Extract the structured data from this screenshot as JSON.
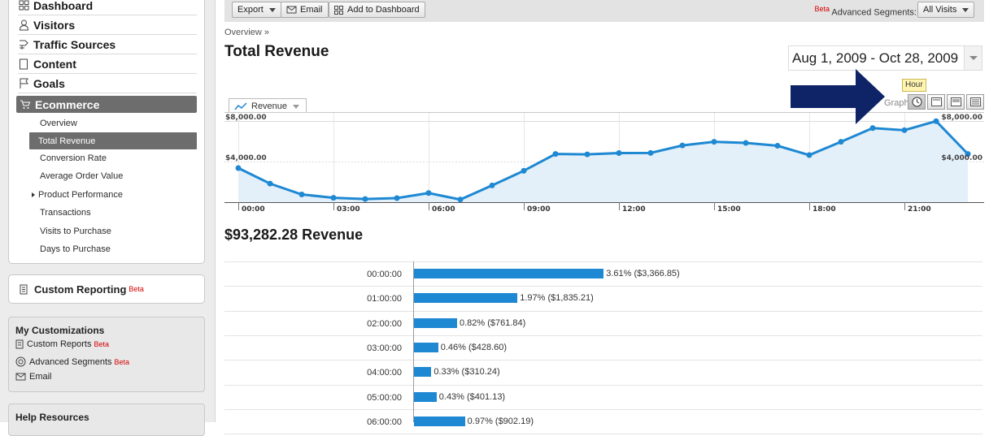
{
  "sidebar": {
    "nav": [
      {
        "label": "Dashboard",
        "icon": "dashboard-icon"
      },
      {
        "label": "Visitors",
        "icon": "person-icon"
      },
      {
        "label": "Traffic Sources",
        "icon": "traffic-icon"
      },
      {
        "label": "Content",
        "icon": "page-icon"
      },
      {
        "label": "Goals",
        "icon": "flag-icon"
      },
      {
        "label": "Ecommerce",
        "icon": "cart-icon"
      }
    ],
    "ecommerce_sub": [
      "Overview",
      "Total Revenue",
      "Conversion Rate",
      "Average Order Value",
      "Product Performance",
      "Transactions",
      "Visits to Purchase",
      "Days to Purchase"
    ],
    "custom_reporting": {
      "label": "Custom Reporting",
      "badge": "Beta"
    },
    "my_customizations": {
      "title": "My Customizations",
      "items": [
        {
          "label": "Custom Reports",
          "badge": "Beta"
        },
        {
          "label": "Advanced Segments",
          "badge": "Beta"
        },
        {
          "label": "Email",
          "badge": ""
        }
      ]
    },
    "help": {
      "title": "Help Resources"
    }
  },
  "toolbar": {
    "export": "Export",
    "email": "Email",
    "add_dashboard": "Add to Dashboard",
    "beta": "Beta",
    "segments_label": "Advanced Segments:",
    "segments_value": "All Visits"
  },
  "main": {
    "breadcrumb": "Overview »",
    "title": "Total Revenue",
    "date_range": "Aug 1, 2009 - Oct 28, 2009",
    "metric": "Revenue",
    "graph_by": "Graph by:",
    "tooltip": "Hour",
    "revenue_heading": "$93,282.28 Revenue"
  },
  "colors": {
    "accent": "#1e88d2",
    "nav_active": "#6d6d6d",
    "beta": "#d40000",
    "arrow": "#0e2466"
  },
  "chart_data": {
    "type": "area",
    "y_tick_labels": [
      "$8,000.00",
      "$4,000.00"
    ],
    "x_tick_labels": [
      "00:00",
      "03:00",
      "06:00",
      "09:00",
      "12:00",
      "15:00",
      "18:00",
      "21:00"
    ],
    "ylim": [
      0,
      8500
    ],
    "x": [
      0,
      1,
      2,
      3,
      4,
      5,
      6,
      7,
      8,
      9,
      10,
      11,
      12,
      13,
      14,
      15,
      16,
      17,
      18,
      19,
      20,
      21,
      22,
      23
    ],
    "values": [
      3367,
      1835,
      762,
      429,
      310,
      401,
      902,
      260,
      1650,
      3100,
      4760,
      4720,
      4850,
      4860,
      5600,
      5960,
      5850,
      5570,
      4650,
      5960,
      7320,
      7110,
      8000,
      4760
    ]
  },
  "table": {
    "rows": [
      {
        "hour": "00:00:00",
        "pct": 3.61,
        "label": "3.61% ($3,366.85)"
      },
      {
        "hour": "01:00:00",
        "pct": 1.97,
        "label": "1.97% ($1,835.21)"
      },
      {
        "hour": "02:00:00",
        "pct": 0.82,
        "label": "0.82% ($761.84)"
      },
      {
        "hour": "03:00:00",
        "pct": 0.46,
        "label": "0.46% ($428.60)"
      },
      {
        "hour": "04:00:00",
        "pct": 0.33,
        "label": "0.33% ($310.24)"
      },
      {
        "hour": "05:00:00",
        "pct": 0.43,
        "label": "0.43% ($401.13)"
      },
      {
        "hour": "06:00:00",
        "pct": 0.97,
        "label": "0.97% ($902.19)"
      }
    ]
  }
}
